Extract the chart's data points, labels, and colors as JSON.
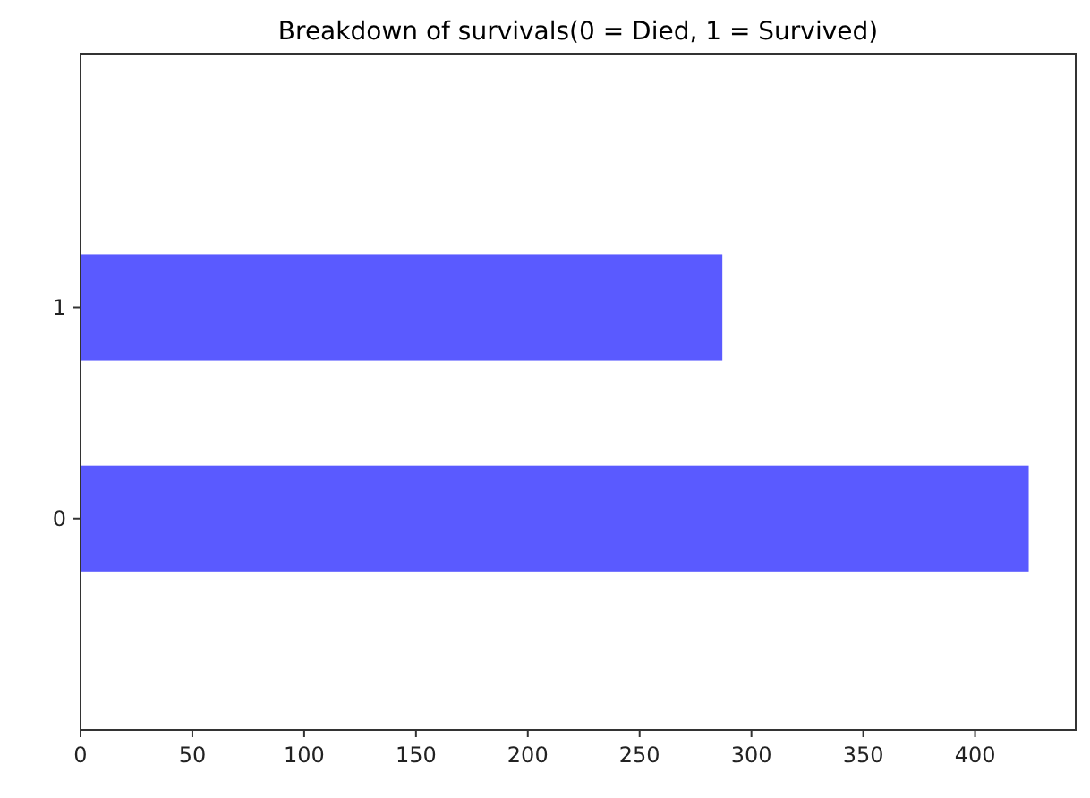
{
  "chart_data": {
    "type": "bar",
    "orientation": "horizontal",
    "title": "Breakdown of survivals(0 = Died, 1 = Survived)",
    "categories": [
      "1",
      "0"
    ],
    "values": [
      287,
      424
    ],
    "color": "#5a5aff",
    "xlim": [
      0,
      445
    ],
    "xticks": [
      0,
      50,
      100,
      150,
      200,
      250,
      300,
      350,
      400
    ],
    "grid": false
  }
}
